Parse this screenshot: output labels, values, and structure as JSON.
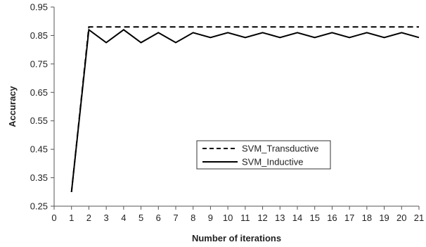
{
  "chart_data": {
    "type": "line",
    "title": "",
    "xlabel": "Number of iterations",
    "ylabel": "Accuracy",
    "xlim": [
      0,
      21
    ],
    "ylim": [
      0.25,
      0.95
    ],
    "x_ticks": [
      0,
      1,
      2,
      3,
      4,
      5,
      6,
      7,
      8,
      9,
      10,
      11,
      12,
      13,
      14,
      15,
      16,
      17,
      18,
      19,
      20,
      21
    ],
    "y_ticks": [
      0.25,
      0.35,
      0.45,
      0.55,
      0.65,
      0.75,
      0.85,
      0.95
    ],
    "y_tick_labels": [
      "0.25",
      "0.35",
      "0.45",
      "0.55",
      "0.65",
      "0.75",
      "0.85",
      "0.95"
    ],
    "grid": false,
    "legend_position": "center-right",
    "x": [
      1,
      2,
      3,
      4,
      5,
      6,
      7,
      8,
      9,
      10,
      11,
      12,
      13,
      14,
      15,
      16,
      17,
      18,
      19,
      20,
      21
    ],
    "series": [
      {
        "name": "SVM_Transductive",
        "style": "dashed",
        "color": "#000000",
        "values": [
          0.3,
          0.88,
          0.88,
          0.88,
          0.88,
          0.88,
          0.88,
          0.88,
          0.88,
          0.88,
          0.88,
          0.88,
          0.88,
          0.88,
          0.88,
          0.88,
          0.88,
          0.88,
          0.88,
          0.88,
          0.88
        ]
      },
      {
        "name": "SVM_Inductive",
        "style": "solid",
        "color": "#000000",
        "values": [
          0.3,
          0.87,
          0.825,
          0.87,
          0.825,
          0.86,
          0.825,
          0.86,
          0.843,
          0.86,
          0.843,
          0.86,
          0.843,
          0.86,
          0.843,
          0.86,
          0.843,
          0.86,
          0.843,
          0.86,
          0.843
        ]
      }
    ]
  }
}
